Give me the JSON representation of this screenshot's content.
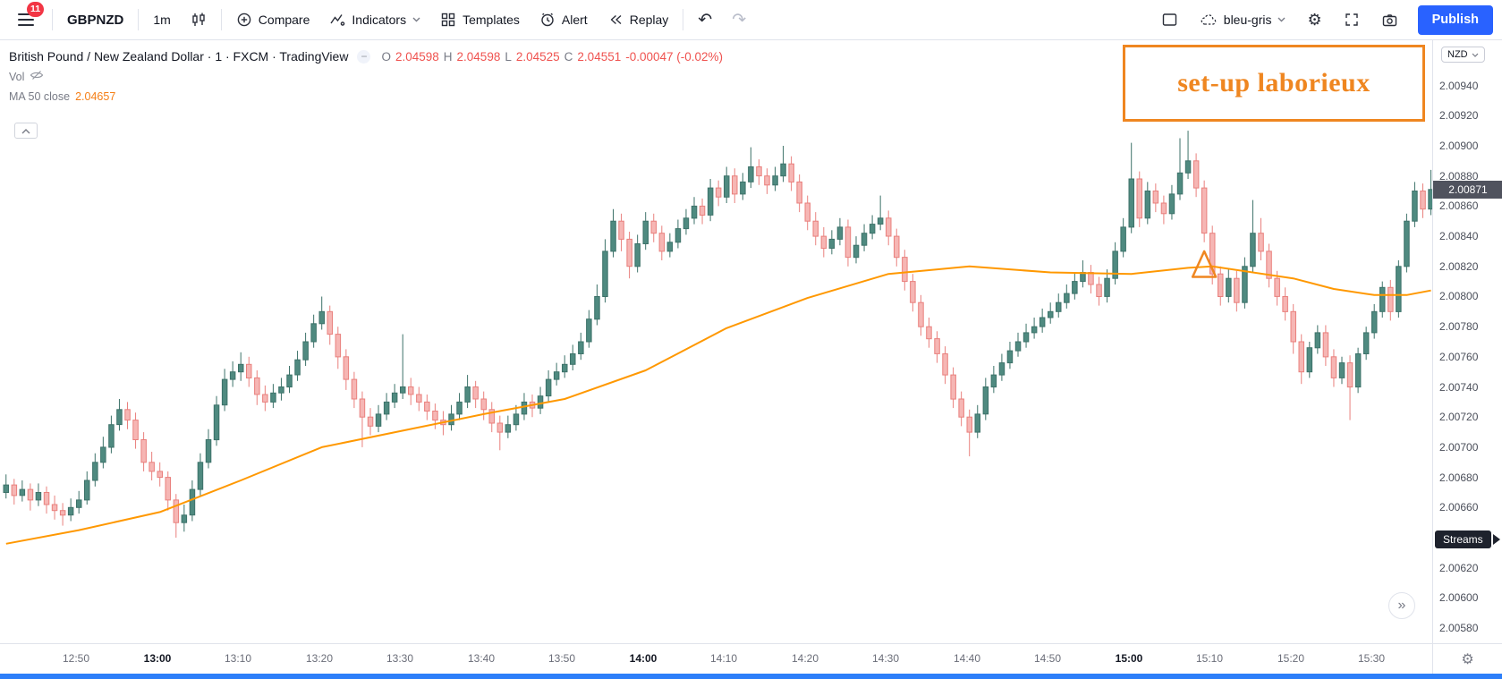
{
  "icons": {
    "undo": "↶",
    "redo": "↷",
    "gear": "⚙",
    "chevron_double_right": "»",
    "minus": "−"
  },
  "toolbar": {
    "menu_badge": "11",
    "symbol": "GBPNZD",
    "interval": "1m",
    "compare_label": "Compare",
    "indicators_label": "Indicators",
    "templates_label": "Templates",
    "alert_label": "Alert",
    "replay_label": "Replay",
    "layout_name": "bleu-gris",
    "publish_label": "Publish"
  },
  "legend": {
    "title": "British Pound / New Zealand Dollar · 1 · FXCM · TradingView",
    "ohlc": {
      "o_label": "O",
      "o": "2.04598",
      "h_label": "H",
      "h": "2.04598",
      "l_label": "L",
      "l": "2.04525",
      "c_label": "C",
      "c": "2.04551",
      "change": "-0.00047 (-0.02%)"
    },
    "vol_label": "Vol",
    "ma_label": "MA 50 close",
    "ma_value": "2.04657"
  },
  "annotations": {
    "note_text": "set-up laborieux",
    "color": "#ef8620",
    "triangle": {
      "index": 148,
      "price_top": 2.0083,
      "price_bottom": 2.00813
    }
  },
  "price_axis": {
    "currency": "NZD",
    "last_price": "2.00871",
    "streams_label": "Streams",
    "streams_price_level": 2.00638
  },
  "chart_data": {
    "type": "candlestick",
    "symbol": "GBPNZD",
    "interval": "1m",
    "start_time": "12:41",
    "ylim": [
      2.0057,
      2.0097
    ],
    "grid": "off",
    "y_ticks": [
      "2.00940",
      "2.00920",
      "2.00900",
      "2.00880",
      "2.00860",
      "2.00840",
      "2.00820",
      "2.00800",
      "2.00780",
      "2.00760",
      "2.00740",
      "2.00720",
      "2.00700",
      "2.00680",
      "2.00660",
      "2.00640",
      "2.00620",
      "2.00600",
      "2.00580"
    ],
    "x_ticks": [
      {
        "label": "12:50",
        "index": 9,
        "bold": false
      },
      {
        "label": "13:00",
        "index": 19,
        "bold": true
      },
      {
        "label": "13:10",
        "index": 29,
        "bold": false
      },
      {
        "label": "13:20",
        "index": 39,
        "bold": false
      },
      {
        "label": "13:30",
        "index": 49,
        "bold": false
      },
      {
        "label": "13:40",
        "index": 59,
        "bold": false
      },
      {
        "label": "13:50",
        "index": 69,
        "bold": false
      },
      {
        "label": "14:00",
        "index": 79,
        "bold": true
      },
      {
        "label": "14:10",
        "index": 89,
        "bold": false
      },
      {
        "label": "14:20",
        "index": 99,
        "bold": false
      },
      {
        "label": "14:30",
        "index": 109,
        "bold": false
      },
      {
        "label": "14:40",
        "index": 119,
        "bold": false
      },
      {
        "label": "14:50",
        "index": 129,
        "bold": false
      },
      {
        "label": "15:00",
        "index": 139,
        "bold": true
      },
      {
        "label": "15:10",
        "index": 149,
        "bold": false
      },
      {
        "label": "15:20",
        "index": 159,
        "bold": false
      },
      {
        "label": "15:30",
        "index": 169,
        "bold": false
      }
    ],
    "colors": {
      "up": "#4f8a80",
      "up_border": "#3d7269",
      "down": "#f6b6b4",
      "down_border": "#e9807d",
      "ma": "#ff9800"
    },
    "ma50": {
      "label": "MA 50 close",
      "anchors": [
        [
          0,
          2.00636
        ],
        [
          9,
          2.00645
        ],
        [
          19,
          2.00657
        ],
        [
          29,
          2.00678
        ],
        [
          39,
          2.007
        ],
        [
          49,
          2.00711
        ],
        [
          59,
          2.00722
        ],
        [
          69,
          2.00732
        ],
        [
          79,
          2.00751
        ],
        [
          89,
          2.00779
        ],
        [
          99,
          2.00799
        ],
        [
          109,
          2.00815
        ],
        [
          119,
          2.0082
        ],
        [
          129,
          2.00816
        ],
        [
          139,
          2.00815
        ],
        [
          146,
          2.00819
        ],
        [
          149,
          2.0082
        ],
        [
          159,
          2.00812
        ],
        [
          164,
          2.00805
        ],
        [
          169,
          2.00801
        ],
        [
          173,
          2.00801
        ],
        [
          176,
          2.00804
        ]
      ]
    },
    "candles": [
      [
        2.0067,
        2.00682,
        2.00666,
        2.00675
      ],
      [
        2.00675,
        2.00679,
        2.00662,
        2.00668
      ],
      [
        2.00668,
        2.00678,
        2.00664,
        2.00672
      ],
      [
        2.00672,
        2.00676,
        2.00658,
        2.00665
      ],
      [
        2.00665,
        2.00676,
        2.00661,
        2.0067
      ],
      [
        2.0067,
        2.00674,
        2.00656,
        2.00662
      ],
      [
        2.00662,
        2.00668,
        2.00652,
        2.00658
      ],
      [
        2.00658,
        2.00663,
        2.00648,
        2.00655
      ],
      [
        2.00655,
        2.00666,
        2.00651,
        2.0066
      ],
      [
        2.0066,
        2.00671,
        2.00656,
        2.00665
      ],
      [
        2.00665,
        2.00684,
        2.00662,
        2.00678
      ],
      [
        2.00678,
        2.00696,
        2.00674,
        2.0069
      ],
      [
        2.0069,
        2.00707,
        2.00686,
        2.007
      ],
      [
        2.007,
        2.00721,
        2.00696,
        2.00715
      ],
      [
        2.00715,
        2.00732,
        2.00711,
        2.00725
      ],
      [
        2.00725,
        2.0073,
        2.00712,
        2.00718
      ],
      [
        2.00718,
        2.00723,
        2.00699,
        2.00705
      ],
      [
        2.00705,
        2.0071,
        2.00684,
        2.0069
      ],
      [
        2.0069,
        2.00697,
        2.00678,
        2.00684
      ],
      [
        2.00684,
        2.0069,
        2.00674,
        2.0068
      ],
      [
        2.0068,
        2.00684,
        2.00658,
        2.00665
      ],
      [
        2.00665,
        2.00669,
        2.0064,
        2.0065
      ],
      [
        2.0065,
        2.00662,
        2.00644,
        2.00655
      ],
      [
        2.00655,
        2.00678,
        2.00651,
        2.00672
      ],
      [
        2.00672,
        2.00696,
        2.00668,
        2.0069
      ],
      [
        2.0069,
        2.00712,
        2.00686,
        2.00705
      ],
      [
        2.00705,
        2.00734,
        2.00701,
        2.00728
      ],
      [
        2.00728,
        2.00752,
        2.00724,
        2.00745
      ],
      [
        2.00745,
        2.00757,
        2.0074,
        2.0075
      ],
      [
        2.0075,
        2.00763,
        2.00744,
        2.00755
      ],
      [
        2.00755,
        2.0076,
        2.0074,
        2.00746
      ],
      [
        2.00746,
        2.00751,
        2.00728,
        2.00735
      ],
      [
        2.00735,
        2.00741,
        2.00724,
        2.0073
      ],
      [
        2.0073,
        2.00742,
        2.00726,
        2.00736
      ],
      [
        2.00736,
        2.00746,
        2.00731,
        2.0074
      ],
      [
        2.0074,
        2.00754,
        2.00736,
        2.00748
      ],
      [
        2.00748,
        2.00764,
        2.00744,
        2.00758
      ],
      [
        2.00758,
        2.00776,
        2.00754,
        2.0077
      ],
      [
        2.0077,
        2.00788,
        2.00766,
        2.00782
      ],
      [
        2.00782,
        2.008,
        2.00778,
        2.0079
      ],
      [
        2.0079,
        2.00794,
        2.00768,
        2.00775
      ],
      [
        2.00775,
        2.0078,
        2.00752,
        2.0076
      ],
      [
        2.0076,
        2.00765,
        2.00738,
        2.00745
      ],
      [
        2.00745,
        2.0075,
        2.00726,
        2.00732
      ],
      [
        2.00732,
        2.00737,
        2.007,
        2.0072
      ],
      [
        2.0072,
        2.00726,
        2.00708,
        2.00714
      ],
      [
        2.00714,
        2.00728,
        2.0071,
        2.00722
      ],
      [
        2.00722,
        2.00736,
        2.00718,
        2.0073
      ],
      [
        2.0073,
        2.00742,
        2.00726,
        2.00736
      ],
      [
        2.00736,
        2.00775,
        2.00732,
        2.0074
      ],
      [
        2.0074,
        2.00746,
        2.00728,
        2.00735
      ],
      [
        2.00735,
        2.0074,
        2.00724,
        2.0073
      ],
      [
        2.0073,
        2.00735,
        2.00718,
        2.00724
      ],
      [
        2.00724,
        2.00729,
        2.00712,
        2.00718
      ],
      [
        2.00718,
        2.00724,
        2.00708,
        2.00715
      ],
      [
        2.00715,
        2.00728,
        2.00711,
        2.00722
      ],
      [
        2.00722,
        2.00736,
        2.00718,
        2.0073
      ],
      [
        2.0073,
        2.00748,
        2.00726,
        2.0074
      ],
      [
        2.0074,
        2.00744,
        2.00726,
        2.00732
      ],
      [
        2.00732,
        2.00737,
        2.00718,
        2.00725
      ],
      [
        2.00725,
        2.0073,
        2.0071,
        2.00716
      ],
      [
        2.00716,
        2.00721,
        2.00698,
        2.0071
      ],
      [
        2.0071,
        2.00721,
        2.00706,
        2.00715
      ],
      [
        2.00715,
        2.00728,
        2.00711,
        2.00722
      ],
      [
        2.00722,
        2.00736,
        2.00718,
        2.0073
      ],
      [
        2.0073,
        2.00735,
        2.0072,
        2.00726
      ],
      [
        2.00726,
        2.0074,
        2.00722,
        2.00734
      ],
      [
        2.00734,
        2.00751,
        2.0073,
        2.00745
      ],
      [
        2.00745,
        2.00756,
        2.00741,
        2.0075
      ],
      [
        2.0075,
        2.00761,
        2.00746,
        2.00755
      ],
      [
        2.00755,
        2.00768,
        2.00751,
        2.00762
      ],
      [
        2.00762,
        2.00776,
        2.00758,
        2.0077
      ],
      [
        2.0077,
        2.00791,
        2.00766,
        2.00785
      ],
      [
        2.00785,
        2.00808,
        2.00781,
        2.008
      ],
      [
        2.008,
        2.00838,
        2.00796,
        2.0083
      ],
      [
        2.0083,
        2.00858,
        2.00826,
        2.0085
      ],
      [
        2.0085,
        2.00855,
        2.0083,
        2.00838
      ],
      [
        2.00838,
        2.00843,
        2.00812,
        2.0082
      ],
      [
        2.0082,
        2.00841,
        2.00816,
        2.00835
      ],
      [
        2.00835,
        2.00856,
        2.00831,
        2.0085
      ],
      [
        2.0085,
        2.00855,
        2.00836,
        2.00842
      ],
      [
        2.00842,
        2.00847,
        2.00824,
        2.0083
      ],
      [
        2.0083,
        2.00842,
        2.00826,
        2.00836
      ],
      [
        2.00836,
        2.00851,
        2.00832,
        2.00845
      ],
      [
        2.00845,
        2.00858,
        2.00841,
        2.00852
      ],
      [
        2.00852,
        2.00866,
        2.00848,
        2.0086
      ],
      [
        2.0086,
        2.00865,
        2.00848,
        2.00854
      ],
      [
        2.00854,
        2.00878,
        2.0085,
        2.00872
      ],
      [
        2.00872,
        2.00877,
        2.0086,
        2.00866
      ],
      [
        2.00866,
        2.00886,
        2.00862,
        2.0088
      ],
      [
        2.0088,
        2.00885,
        2.00862,
        2.00868
      ],
      [
        2.00868,
        2.00882,
        2.00864,
        2.00876
      ],
      [
        2.00876,
        2.00899,
        2.00872,
        2.00886
      ],
      [
        2.00886,
        2.00891,
        2.00874,
        2.0088
      ],
      [
        2.0088,
        2.00885,
        2.00868,
        2.00874
      ],
      [
        2.00874,
        2.00886,
        2.0087,
        2.0088
      ],
      [
        2.0088,
        2.009,
        2.00876,
        2.00888
      ],
      [
        2.00888,
        2.00893,
        2.0087,
        2.00876
      ],
      [
        2.00876,
        2.00881,
        2.00856,
        2.00862
      ],
      [
        2.00862,
        2.00867,
        2.00844,
        2.0085
      ],
      [
        2.0085,
        2.00856,
        2.00834,
        2.0084
      ],
      [
        2.0084,
        2.00846,
        2.00826,
        2.00832
      ],
      [
        2.00832,
        2.00844,
        2.00828,
        2.00838
      ],
      [
        2.00838,
        2.00852,
        2.00834,
        2.00846
      ],
      [
        2.00846,
        2.00851,
        2.0082,
        2.00826
      ],
      [
        2.00826,
        2.0084,
        2.00822,
        2.00834
      ],
      [
        2.00834,
        2.00848,
        2.0083,
        2.00842
      ],
      [
        2.00842,
        2.00854,
        2.00838,
        2.00848
      ],
      [
        2.00848,
        2.00867,
        2.00844,
        2.00852
      ],
      [
        2.00852,
        2.00857,
        2.00834,
        2.0084
      ],
      [
        2.0084,
        2.00845,
        2.0082,
        2.00826
      ],
      [
        2.00826,
        2.00831,
        2.00804,
        2.0081
      ],
      [
        2.0081,
        2.00815,
        2.0079,
        2.00796
      ],
      [
        2.00796,
        2.00801,
        2.00774,
        2.0078
      ],
      [
        2.0078,
        2.00786,
        2.00766,
        2.00772
      ],
      [
        2.00772,
        2.00777,
        2.00756,
        2.00762
      ],
      [
        2.00762,
        2.00767,
        2.00742,
        2.00748
      ],
      [
        2.00748,
        2.00753,
        2.00726,
        2.00732
      ],
      [
        2.00732,
        2.00737,
        2.00714,
        2.0072
      ],
      [
        2.0072,
        2.00725,
        2.00694,
        2.0071
      ],
      [
        2.0071,
        2.00728,
        2.00706,
        2.00722
      ],
      [
        2.00722,
        2.00746,
        2.00718,
        2.0074
      ],
      [
        2.0074,
        2.00754,
        2.00736,
        2.00748
      ],
      [
        2.00748,
        2.00762,
        2.00744,
        2.00756
      ],
      [
        2.00756,
        2.0077,
        2.00752,
        2.00764
      ],
      [
        2.00764,
        2.00776,
        2.0076,
        2.0077
      ],
      [
        2.0077,
        2.00782,
        2.00766,
        2.00776
      ],
      [
        2.00776,
        2.00786,
        2.00772,
        2.0078
      ],
      [
        2.0078,
        2.00792,
        2.00776,
        2.00786
      ],
      [
        2.00786,
        2.00796,
        2.00782,
        2.0079
      ],
      [
        2.0079,
        2.00802,
        2.00786,
        2.00796
      ],
      [
        2.00796,
        2.00808,
        2.00792,
        2.00802
      ],
      [
        2.00802,
        2.00816,
        2.00798,
        2.0081
      ],
      [
        2.0081,
        2.00824,
        2.00806,
        2.00816
      ],
      [
        2.00816,
        2.00821,
        2.00802,
        2.00808
      ],
      [
        2.00808,
        2.00813,
        2.00794,
        2.008
      ],
      [
        2.008,
        2.00818,
        2.00796,
        2.00812
      ],
      [
        2.00812,
        2.00836,
        2.00808,
        2.0083
      ],
      [
        2.0083,
        2.00852,
        2.00826,
        2.00846
      ],
      [
        2.00846,
        2.00902,
        2.00842,
        2.00878
      ],
      [
        2.00878,
        2.00883,
        2.00846,
        2.00852
      ],
      [
        2.00852,
        2.00876,
        2.00848,
        2.0087
      ],
      [
        2.0087,
        2.00875,
        2.00856,
        2.00862
      ],
      [
        2.00862,
        2.00867,
        2.00848,
        2.00855
      ],
      [
        2.00855,
        2.00874,
        2.00851,
        2.00868
      ],
      [
        2.00868,
        2.00905,
        2.00864,
        2.00882
      ],
      [
        2.00882,
        2.0091,
        2.00878,
        2.0089
      ],
      [
        2.0089,
        2.00895,
        2.00866,
        2.00872
      ],
      [
        2.00872,
        2.00877,
        2.00836,
        2.00842
      ],
      [
        2.00842,
        2.00847,
        2.00808,
        2.00815
      ],
      [
        2.00815,
        2.0082,
        2.00794,
        2.008
      ],
      [
        2.008,
        2.00818,
        2.00796,
        2.00812
      ],
      [
        2.00812,
        2.00817,
        2.0079,
        2.00796
      ],
      [
        2.00796,
        2.00826,
        2.00792,
        2.0082
      ],
      [
        2.0082,
        2.00864,
        2.00816,
        2.00842
      ],
      [
        2.00842,
        2.00852,
        2.00824,
        2.0083
      ],
      [
        2.0083,
        2.00835,
        2.00806,
        2.00812
      ],
      [
        2.00812,
        2.00817,
        2.00794,
        2.008
      ],
      [
        2.008,
        2.00806,
        2.00784,
        2.0079
      ],
      [
        2.0079,
        2.00795,
        2.00762,
        2.0077
      ],
      [
        2.0077,
        2.00775,
        2.00742,
        2.0075
      ],
      [
        2.0075,
        2.0077,
        2.00746,
        2.00766
      ],
      [
        2.00766,
        2.00781,
        2.00762,
        2.00776
      ],
      [
        2.00776,
        2.00781,
        2.00754,
        2.0076
      ],
      [
        2.0076,
        2.00765,
        2.0074,
        2.00746
      ],
      [
        2.00746,
        2.0076,
        2.00742,
        2.00756
      ],
      [
        2.00756,
        2.00761,
        2.00718,
        2.0074
      ],
      [
        2.0074,
        2.00766,
        2.00736,
        2.00762
      ],
      [
        2.00762,
        2.0078,
        2.00758,
        2.00776
      ],
      [
        2.00776,
        2.00795,
        2.00772,
        2.0079
      ],
      [
        2.0079,
        2.0081,
        2.00786,
        2.00806
      ],
      [
        2.00806,
        2.00811,
        2.00784,
        2.0079
      ],
      [
        2.0079,
        2.00824,
        2.00786,
        2.0082
      ],
      [
        2.0082,
        2.00855,
        2.00816,
        2.0085
      ],
      [
        2.0085,
        2.00876,
        2.00846,
        2.0087
      ],
      [
        2.0087,
        2.00875,
        2.00852,
        2.00858
      ],
      [
        2.00858,
        2.00884,
        2.00854,
        2.00871
      ]
    ]
  }
}
